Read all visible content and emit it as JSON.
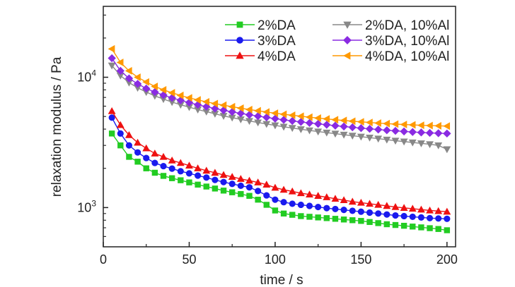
{
  "chart_data": {
    "type": "scatter",
    "xlabel": "time / s",
    "ylabel": "relaxation modulus / Pa",
    "xlim": [
      0,
      205
    ],
    "ylim": [
      500,
      35000
    ],
    "yscale": "log",
    "x_ticks": [
      0,
      50,
      100,
      150,
      200
    ],
    "x_tick_labels": [
      "0",
      "50",
      "100",
      "150",
      "200"
    ],
    "y_ticks": [
      1000,
      10000
    ],
    "y_tick_labels": [
      {
        "base": "10",
        "exp": "3"
      },
      {
        "base": "10",
        "exp": "4"
      }
    ],
    "legend_placement": "top-right",
    "grid": false,
    "x": [
      5,
      10,
      15,
      20,
      25,
      30,
      35,
      40,
      45,
      50,
      55,
      60,
      65,
      70,
      75,
      80,
      85,
      90,
      95,
      100,
      105,
      110,
      115,
      120,
      125,
      130,
      135,
      140,
      145,
      150,
      155,
      160,
      165,
      170,
      175,
      180,
      185,
      190,
      195,
      200
    ],
    "series": [
      {
        "name": "2%DA",
        "color": "#22cc22",
        "marker": "square",
        "values": [
          3700,
          3000,
          2450,
          2250,
          2000,
          1850,
          1750,
          1680,
          1620,
          1560,
          1500,
          1450,
          1400,
          1350,
          1310,
          1270,
          1230,
          1150,
          1050,
          950,
          900,
          880,
          860,
          850,
          840,
          830,
          820,
          810,
          800,
          790,
          775,
          760,
          745,
          735,
          725,
          715,
          705,
          695,
          685,
          670
        ]
      },
      {
        "name": "3%DA",
        "color": "#1a1aee",
        "marker": "circle",
        "values": [
          4900,
          3700,
          3000,
          2650,
          2400,
          2200,
          2080,
          1990,
          1900,
          1830,
          1760,
          1700,
          1630,
          1570,
          1520,
          1470,
          1430,
          1340,
          1240,
          1150,
          1100,
          1070,
          1050,
          1030,
          1010,
          990,
          975,
          960,
          945,
          930,
          915,
          900,
          885,
          870,
          860,
          850,
          840,
          830,
          825,
          820
        ]
      },
      {
        "name": "4%DA",
        "color": "#ee1111",
        "marker": "triangle-up",
        "values": [
          5500,
          4300,
          3600,
          3150,
          2850,
          2600,
          2450,
          2300,
          2200,
          2100,
          2000,
          1920,
          1850,
          1780,
          1720,
          1660,
          1610,
          1560,
          1500,
          1420,
          1370,
          1330,
          1290,
          1260,
          1230,
          1200,
          1170,
          1140,
          1110,
          1090,
          1070,
          1050,
          1030,
          1010,
          995,
          980,
          965,
          950,
          940,
          930
        ]
      },
      {
        "name": "2%DA, 10%Al",
        "color": "#888888",
        "marker": "triangle-down",
        "values": [
          12300,
          10300,
          9100,
          8300,
          7700,
          7200,
          6800,
          6450,
          6150,
          5900,
          5650,
          5450,
          5250,
          5050,
          4900,
          4750,
          4620,
          4500,
          4380,
          4270,
          4170,
          4080,
          3990,
          3910,
          3830,
          3760,
          3690,
          3620,
          3560,
          3500,
          3440,
          3380,
          3320,
          3260,
          3210,
          3160,
          3110,
          3060,
          3000,
          2800
        ]
      },
      {
        "name": "3%DA, 10%Al",
        "color": "#8a2be2",
        "marker": "diamond",
        "values": [
          14000,
          11200,
          9800,
          8900,
          8200,
          7700,
          7300,
          6950,
          6650,
          6400,
          6150,
          5950,
          5750,
          5580,
          5420,
          5280,
          5150,
          5030,
          4920,
          4810,
          4710,
          4620,
          4540,
          4460,
          4390,
          4320,
          4250,
          4190,
          4130,
          4070,
          4020,
          3970,
          3920,
          3880,
          3840,
          3800,
          3770,
          3740,
          3720,
          3700
        ]
      },
      {
        "name": "4%DA, 10%Al",
        "color": "#ff9900",
        "marker": "triangle-left",
        "values": [
          16500,
          13000,
          11200,
          10000,
          9200,
          8500,
          8000,
          7600,
          7250,
          6950,
          6700,
          6480,
          6280,
          6100,
          5940,
          5790,
          5650,
          5530,
          5410,
          5300,
          5200,
          5110,
          5020,
          4940,
          4860,
          4790,
          4720,
          4660,
          4600,
          4550,
          4500,
          4450,
          4410,
          4370,
          4340,
          4310,
          4280,
          4260,
          4240,
          4220
        ]
      }
    ]
  }
}
